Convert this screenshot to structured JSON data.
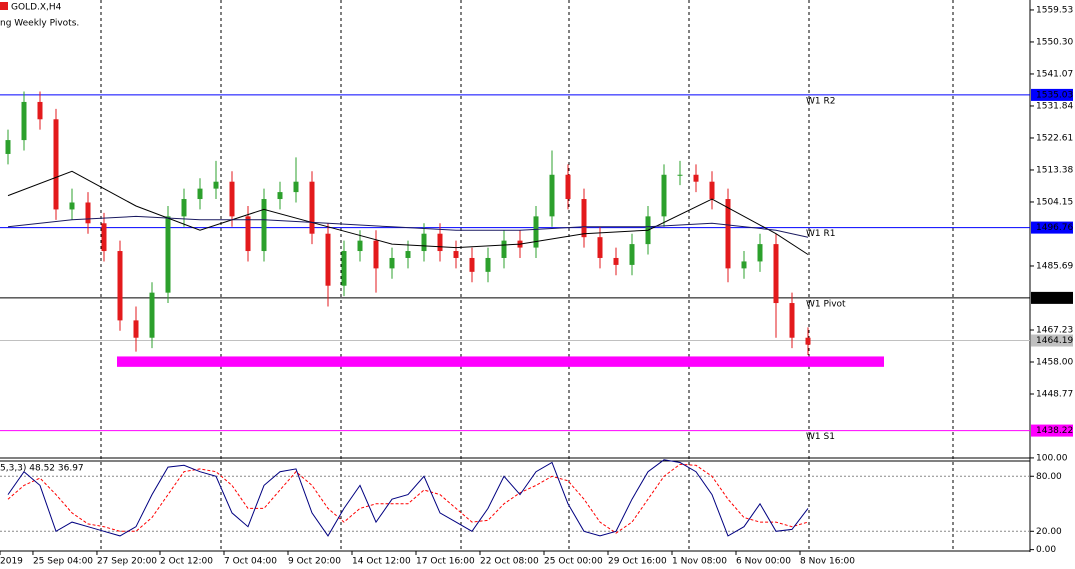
{
  "chart_data": {
    "type": "candlestick",
    "title": "GOLD.X,H4",
    "subtitle": "ng Weekly Pivots.",
    "up_color": "#2ca02c",
    "down_color": "#e31a1c",
    "ylim": [
      1430.6,
      1562.4
    ],
    "yticks": [
      1559.53,
      {
        "value": 1550.3,
        "label": "1550.30"
      },
      1541.07,
      1531.84,
      1522.61,
      1513.38,
      1504.15,
      1485.69,
      1467.23,
      {
        "value": 1458,
        "label": "1458.00"
      },
      1448.77
    ],
    "xticks": [
      {
        "value": -0.5,
        "label": "2019"
      },
      {
        "value": 1.56,
        "label": "25 Sep 04:00"
      },
      {
        "value": 5.56,
        "label": "27 Sep 20:00"
      },
      {
        "value": 9.5,
        "label": "2 Oct 12:00"
      },
      {
        "value": 13.5,
        "label": "7 Oct 04:00"
      },
      {
        "value": 17.5,
        "label": "9 Oct 20:00"
      },
      {
        "value": 21.5,
        "label": "14 Oct 12:00"
      },
      {
        "value": 25.5,
        "label": "17 Oct 16:00"
      },
      {
        "value": 29.5,
        "label": "22 Oct 08:00"
      },
      {
        "value": 33.5,
        "label": "25 Oct 00:00"
      },
      {
        "value": 37.5,
        "label": "29 Oct 16:00"
      },
      {
        "value": 41.5,
        "label": "1 Nov 08:00"
      },
      {
        "value": 45.5,
        "label": "6 Nov 00:00"
      },
      {
        "value": 49.5,
        "label": "8 Nov 16:00"
      }
    ],
    "open": [
      1518,
      1522,
      1533,
      1528,
      1502,
      1504,
      1498,
      1490,
      1470,
      1465,
      1478,
      1500,
      1505,
      1508,
      1510,
      1500,
      1490,
      1505,
      1507,
      1510,
      1495,
      1480,
      1490,
      1493,
      1485,
      1488,
      1490,
      1495,
      1490,
      1488,
      1484,
      1488,
      1493,
      1491,
      1500,
      1512,
      1505,
      1494,
      1488,
      1486,
      1492,
      1500,
      1512,
      1512,
      1510,
      1505,
      1485,
      1487,
      1492,
      1475,
      1465
    ],
    "high": [
      1525,
      1536,
      1536,
      1531,
      1508,
      1507,
      1501,
      1493,
      1474,
      1481,
      1503,
      1508,
      1511,
      1516,
      1513,
      1503,
      1508,
      1510,
      1517,
      1513,
      1498,
      1493,
      1496,
      1496,
      1491,
      1493,
      1498,
      1498,
      1493,
      1491,
      1491,
      1496,
      1496,
      1503,
      1519,
      1515,
      1508,
      1497,
      1491,
      1495,
      1503,
      1515,
      1516,
      1515,
      1513,
      1508,
      1490,
      1495,
      1495,
      1478,
      1468
    ],
    "low": [
      1515,
      1519,
      1525,
      1499,
      1499,
      1495,
      1487,
      1467,
      1461,
      1462,
      1475,
      1497,
      1502,
      1505,
      1497,
      1487,
      1487,
      1502,
      1504,
      1492,
      1474,
      1477,
      1487,
      1478,
      1482,
      1485,
      1487,
      1487,
      1485,
      1481,
      1481,
      1485,
      1488,
      1488,
      1497,
      1502,
      1491,
      1485,
      1483,
      1483,
      1489,
      1497,
      1509,
      1507,
      1502,
      1481,
      1482,
      1484,
      1465,
      1462,
      1460
    ],
    "close": [
      1522,
      1533,
      1528,
      1502,
      1504,
      1498,
      1490,
      1470,
      1465,
      1478,
      1500,
      1505,
      1508,
      1510,
      1500,
      1490,
      1505,
      1507,
      1510,
      1495,
      1480,
      1490,
      1493,
      1485,
      1488,
      1490,
      1495,
      1490,
      1488,
      1484,
      1488,
      1493,
      1491,
      1500,
      1512,
      1505,
      1494,
      1488,
      1486,
      1492,
      1500,
      1512,
      1512,
      1510,
      1505,
      1485,
      1487,
      1492,
      1475,
      1465,
      1463
    ],
    "ma_x": [
      0,
      4,
      8,
      12,
      16,
      20,
      24,
      28,
      32,
      36,
      40,
      44,
      48,
      50
    ],
    "ma": [
      {
        "color": "#000000",
        "values": [
          1506,
          1513,
          1503,
          1496,
          1502,
          1497,
          1492,
          1491,
          1492,
          1495,
          1496,
          1505,
          1495,
          1489
        ]
      },
      {
        "color": "#1a1a60",
        "values": [
          1497,
          1499,
          1500,
          1499,
          1499,
          1498,
          1497,
          1496,
          1496,
          1497,
          1497,
          1498,
          1496,
          1494
        ]
      }
    ],
    "levels": [
      {
        "name": "W1 R2",
        "value": 1535.03,
        "color": "#0000ff"
      },
      {
        "name": "W1 R1",
        "value": 1496.76,
        "color": "#0000ff"
      },
      {
        "name": "W1 Pivot",
        "value": 1476.49,
        "color": "#000000"
      },
      {
        "name": "W1 S1",
        "value": 1438.22,
        "color": "#ff00ff"
      }
    ],
    "current_price": 1464.19,
    "zone": {
      "low": 1456.6,
      "high": 1459.6,
      "color": "#ff00ff"
    },
    "indicator": {
      "label": "5,3,3) 48.52 36.97",
      "ylim": [
        -1.5,
        101
      ],
      "yticks": [
        {
          "value": 100,
          "label": "100.00"
        },
        {
          "value": 80,
          "label": "80.00"
        },
        {
          "value": 20,
          "label": "20.00"
        },
        {
          "value": 0,
          "label": "0.00"
        }
      ],
      "main": {
        "color": "#000080",
        "values": [
          60,
          85,
          70,
          20,
          30,
          25,
          20,
          15,
          25,
          60,
          90,
          92,
          85,
          80,
          40,
          25,
          70,
          85,
          88,
          40,
          15,
          45,
          70,
          30,
          55,
          60,
          80,
          40,
          30,
          20,
          45,
          80,
          60,
          85,
          95,
          50,
          20,
          15,
          20,
          55,
          85,
          98,
          95,
          85,
          60,
          15,
          25,
          50,
          20,
          22,
          45
        ]
      },
      "signal": {
        "color": "#ff0000",
        "values": [
          55,
          70,
          78,
          60,
          40,
          28,
          25,
          20,
          20,
          35,
          60,
          85,
          88,
          85,
          70,
          45,
          45,
          65,
          85,
          70,
          45,
          30,
          45,
          50,
          50,
          50,
          65,
          60,
          45,
          30,
          32,
          50,
          62,
          70,
          80,
          75,
          55,
          30,
          18,
          30,
          55,
          80,
          93,
          92,
          80,
          55,
          35,
          30,
          30,
          25,
          30
        ]
      }
    }
  }
}
